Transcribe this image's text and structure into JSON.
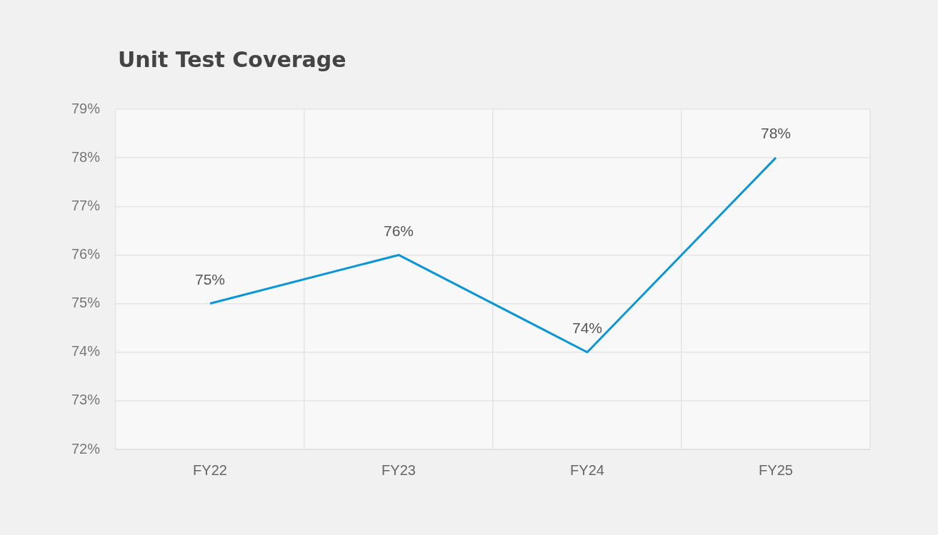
{
  "chart_data": {
    "type": "line",
    "title": "Unit Test Coverage",
    "categories": [
      "FY22",
      "FY23",
      "FY24",
      "FY25"
    ],
    "series": [
      {
        "color": "#0a96d6",
        "values": [
          75,
          76,
          74,
          78
        ],
        "value_labels": [
          "75%",
          "76%",
          "74%",
          "78%"
        ]
      }
    ],
    "ylim": [
      72,
      79
    ],
    "yticks": [
      {
        "value": 72,
        "label": "72%"
      },
      {
        "value": 73,
        "label": "73%"
      },
      {
        "value": 74,
        "label": "74%"
      },
      {
        "value": 75,
        "label": "75%"
      },
      {
        "value": 76,
        "label": "76%"
      },
      {
        "value": 77,
        "label": "77%"
      },
      {
        "value": 78,
        "label": "78%"
      },
      {
        "value": 79,
        "label": "79%"
      }
    ],
    "grid": true,
    "legend": false,
    "marker": "none",
    "line_style": "solid"
  }
}
